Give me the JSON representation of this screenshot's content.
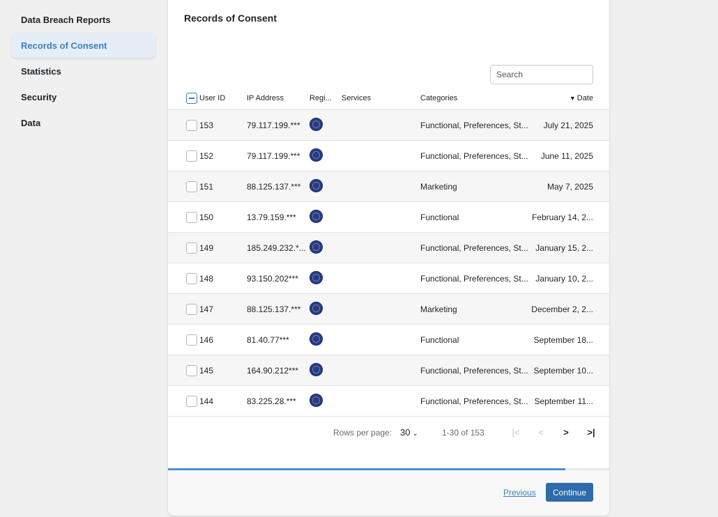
{
  "sidebar": {
    "items": [
      {
        "label": "Data Breach Reports"
      },
      {
        "label": "Records of Consent"
      },
      {
        "label": "Statistics"
      },
      {
        "label": "Security"
      },
      {
        "label": "Data"
      }
    ],
    "active": "Records of Consent"
  },
  "main": {
    "title": "Records of Consent",
    "search_placeholder": "Search",
    "columns": {
      "user_id": "User ID",
      "ip": "IP Address",
      "region": "Regi...",
      "services": "Services",
      "categories": "Categories",
      "date": "Date",
      "sort_icon": "triangle-down-icon"
    },
    "rows": [
      {
        "id": "153",
        "ip": "79.117.199.***",
        "region_icon": "eu-flag-icon",
        "services": "",
        "categories": "Functional, Preferences, St...",
        "date": "July 21, 2025"
      },
      {
        "id": "152",
        "ip": "79.117.199.***",
        "region_icon": "eu-flag-icon",
        "services": "",
        "categories": "Functional, Preferences, St...",
        "date": "June 11, 2025"
      },
      {
        "id": "151",
        "ip": "88.125.137.***",
        "region_icon": "eu-flag-icon",
        "services": "",
        "categories": "Marketing",
        "date": "May 7, 2025"
      },
      {
        "id": "150",
        "ip": "13.79.159.***",
        "region_icon": "eu-flag-icon",
        "services": "",
        "categories": "Functional",
        "date": "February 14, 2..."
      },
      {
        "id": "149",
        "ip": "185.249.232.*...",
        "region_icon": "eu-flag-icon",
        "services": "",
        "categories": "Functional, Preferences, St...",
        "date": "January 15, 2..."
      },
      {
        "id": "148",
        "ip": "93.150.202***",
        "region_icon": "eu-flag-icon",
        "services": "",
        "categories": "Functional, Preferences, St...",
        "date": "January 10, 2..."
      },
      {
        "id": "147",
        "ip": "88.125.137.***",
        "region_icon": "eu-flag-icon",
        "services": "",
        "categories": "Marketing",
        "date": "December 2, 2..."
      },
      {
        "id": "146",
        "ip": "81.40.77***",
        "region_icon": "eu-flag-icon",
        "services": "",
        "categories": "Functional",
        "date": "September 18..."
      },
      {
        "id": "145",
        "ip": "164.90.212***",
        "region_icon": "eu-flag-icon",
        "services": "",
        "categories": "Functional, Preferences, St...",
        "date": "September 10..."
      },
      {
        "id": "144",
        "ip": "83.225.28.***",
        "region_icon": "eu-flag-icon",
        "services": "",
        "categories": "Functional, Preferences, St...",
        "date": "September 11..."
      }
    ],
    "pagination": {
      "rows_per_page_label": "Rows per page:",
      "rows_per_page_value": "30",
      "range": "1-30 of 153"
    }
  },
  "footer": {
    "progress": 0.9,
    "previous_label": "Previous",
    "continue_label": "Continue"
  },
  "colors": {
    "accent": "#3a7fc1",
    "button": "#2f6aaa",
    "progress": "#4a90d9"
  }
}
